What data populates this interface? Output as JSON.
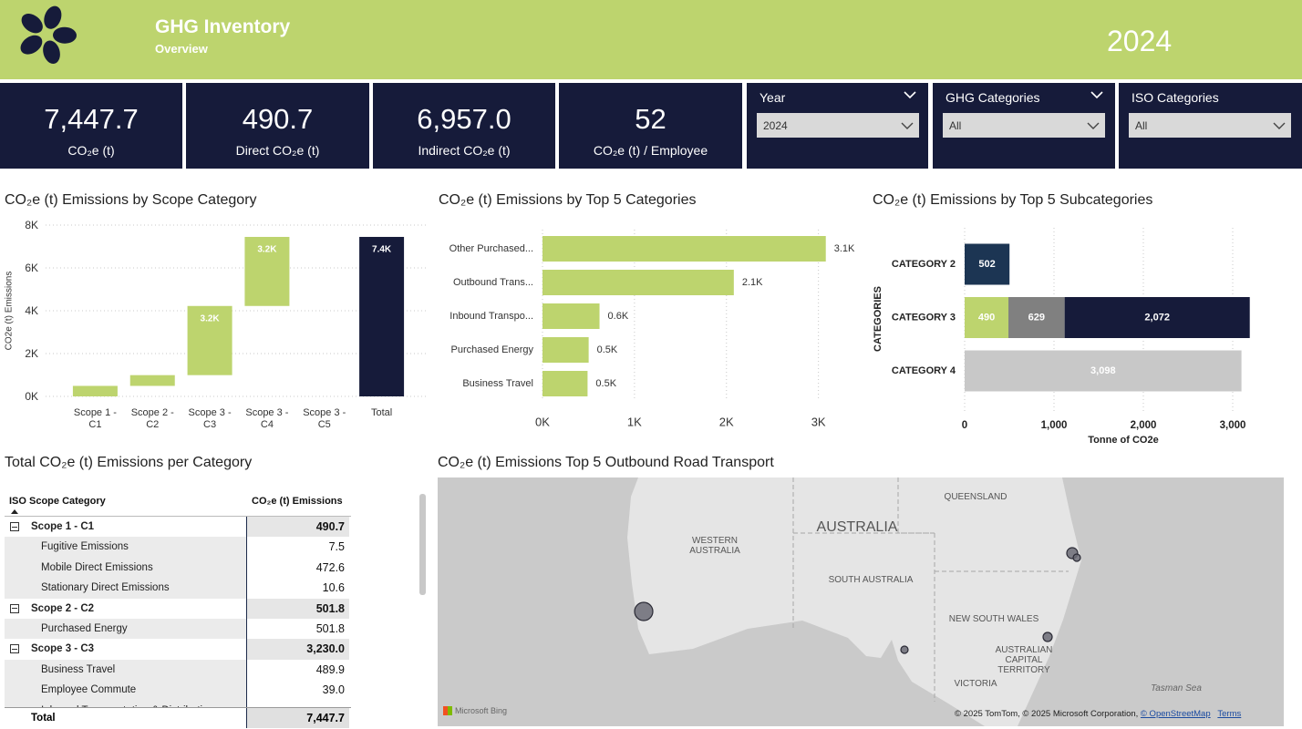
{
  "header": {
    "title": "GHG Inventory",
    "subtitle": "Overview",
    "year": "2024"
  },
  "kpis": [
    {
      "value": "7,447.7",
      "label": "CO₂e (t)"
    },
    {
      "value": "490.7",
      "label": "Direct CO₂e (t)"
    },
    {
      "value": "6,957.0",
      "label": "Indirect CO₂e (t)"
    },
    {
      "value": "52",
      "label": "CO₂e (t) / Employee"
    }
  ],
  "filters": [
    {
      "label": "Year",
      "value": "2024"
    },
    {
      "label": "GHG Categories",
      "value": "All"
    },
    {
      "label": "ISO Categories",
      "value": "All"
    }
  ],
  "chart_data": [
    {
      "type": "waterfall",
      "title": "CO₂e (t) Emissions by Scope Category",
      "y_label": "CO2e (t) Emissions",
      "categories": [
        "Scope 1 - C1",
        "Scope 2 - C2",
        "Scope 3 - C3",
        "Scope 3 - C4",
        "Scope 3 - C5",
        "Total"
      ],
      "values": [
        490.7,
        501.8,
        3230.0,
        3225.2,
        0,
        7447.7
      ],
      "value_labels": [
        null,
        null,
        "3.2K",
        "3.2K",
        null,
        "7.4K"
      ],
      "color": "#bdd46e",
      "total_color": "#161b3a",
      "last_is_total": true,
      "ylim": [
        0,
        8000
      ],
      "yticks": [
        {
          "value": 0,
          "label": "0K"
        },
        {
          "value": 2000,
          "label": "2K"
        },
        {
          "value": 4000,
          "label": "4K"
        },
        {
          "value": 6000,
          "label": "6K"
        },
        {
          "value": 8000,
          "label": "8K"
        }
      ],
      "grid": true
    },
    {
      "type": "hbar",
      "title": "CO₂e (t) Emissions by Top 5 Categories",
      "categories": [
        "Other Purchased...",
        "Outbound Trans...",
        "Inbound Transpo...",
        "Purchased Energy",
        "Business Travel"
      ],
      "values": [
        3080,
        2080,
        620,
        501.8,
        489.9
      ],
      "value_labels": [
        "3.1K",
        "2.1K",
        "0.6K",
        "0.5K",
        "0.5K"
      ],
      "color": "#bdd46e",
      "xlim": [
        0,
        3400
      ],
      "xticks": [
        {
          "value": 0,
          "label": "0K"
        },
        {
          "value": 1000,
          "label": "1K"
        },
        {
          "value": 2000,
          "label": "2K"
        },
        {
          "value": 3000,
          "label": "3K"
        }
      ],
      "grid": true
    },
    {
      "type": "stacked_hbar",
      "title": "CO₂e (t) Emissions by Top 5 Subcategories",
      "x_label": "Tonne of CO2e",
      "y_label": "CATEGORIES",
      "categories": [
        "CATEGORY 2",
        "CATEGORY 3",
        "CATEGORY 4"
      ],
      "series": [
        {
          "color": "#1c3553",
          "values": [
            502,
            null,
            null
          ]
        },
        {
          "color": "#bdd46e",
          "values": [
            null,
            490,
            null
          ]
        },
        {
          "color": "#808080",
          "values": [
            null,
            629,
            null
          ]
        },
        {
          "color": "#161b3a",
          "values": [
            null,
            2072,
            null
          ],
          "value_labels": [
            null,
            "2,072",
            null
          ]
        },
        {
          "color": "#c8c8c8",
          "values": [
            null,
            null,
            3098
          ],
          "value_labels": [
            null,
            null,
            "3,098"
          ]
        }
      ],
      "xlim": [
        0,
        3300
      ],
      "xticks": [
        0,
        {
          "value": 1000,
          "label": "1,000"
        },
        {
          "value": 2000,
          "label": "2,000"
        },
        {
          "value": 3000,
          "label": "3,000"
        }
      ],
      "grid": true
    }
  ],
  "table": {
    "title": "Total CO₂e (t) Emissions per Category",
    "columns": [
      "ISO Scope Category",
      "CO₂e (t) Emissions"
    ],
    "rows": [
      {
        "label": "Scope 1 - C1",
        "value": "490.7",
        "group": true
      },
      {
        "label": "Fugitive Emissions",
        "value": "7.5"
      },
      {
        "label": "Mobile Direct Emissions",
        "value": "472.6"
      },
      {
        "label": "Stationary Direct Emissions",
        "value": "10.6"
      },
      {
        "label": "Scope 2 - C2",
        "value": "501.8",
        "group": true
      },
      {
        "label": "Purchased Energy",
        "value": "501.8"
      },
      {
        "label": "Scope 3 - C3",
        "value": "3,230.0",
        "group": true
      },
      {
        "label": "Business Travel",
        "value": "489.9"
      },
      {
        "label": "Employee Commute",
        "value": "39.0"
      },
      {
        "label": "Inbound Transportation & Distribution"
      }
    ],
    "total": {
      "label": "Total",
      "value": "7,447.7"
    }
  },
  "map": {
    "title": "CO₂e (t) Emissions Top 5 Outbound Road Transport",
    "labels": [
      "QUEENSLAND",
      "AUSTRALIA",
      "WESTERN AUSTRALIA",
      "SOUTH AUSTRALIA",
      "NEW SOUTH WALES",
      "AUSTRALIAN CAPITAL TERRITORY",
      "VICTORIA",
      "Tasman Sea"
    ],
    "logo": "Microsoft Bing",
    "attribution": [
      "© 2025 TomTom, © 2025 Microsoft Corporation,",
      "© OpenStreetMap",
      "Terms"
    ]
  }
}
